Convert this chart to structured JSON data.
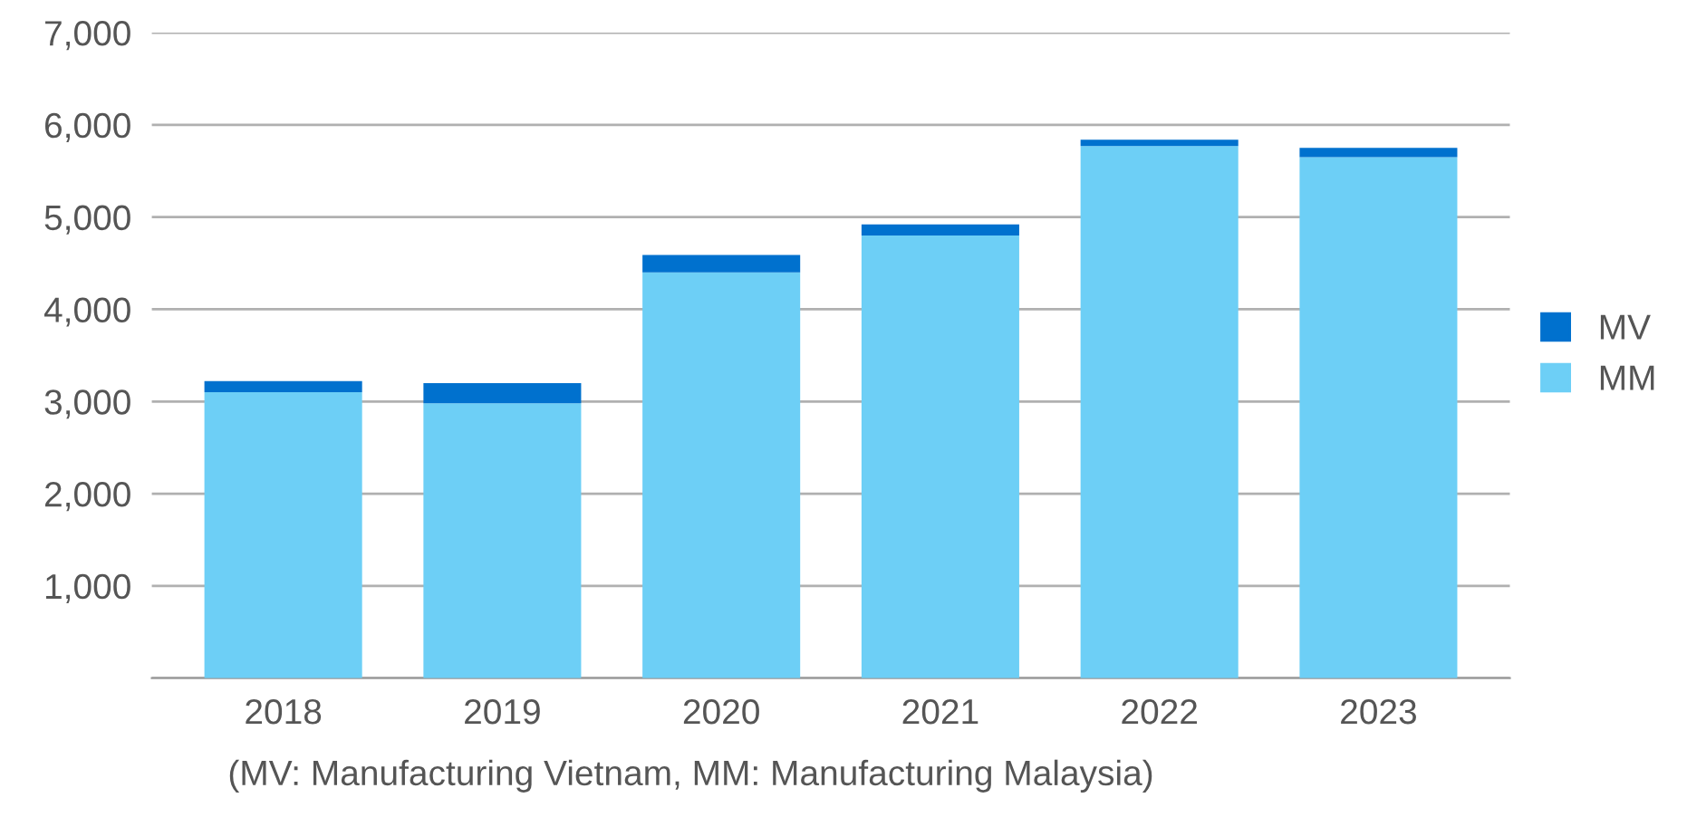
{
  "chart_data": {
    "type": "bar",
    "stacked": true,
    "categories": [
      "2018",
      "2019",
      "2020",
      "2021",
      "2022",
      "2023"
    ],
    "series": [
      {
        "name": "MM",
        "color": "#6dcff6",
        "values": [
          3100,
          2980,
          4400,
          4800,
          5770,
          5650
        ]
      },
      {
        "name": "MV",
        "color": "#0071ce",
        "values": [
          120,
          220,
          190,
          120,
          70,
          100
        ]
      }
    ],
    "ylim": [
      0,
      7000
    ],
    "yticks": [
      {
        "value": 0,
        "label": null
      },
      {
        "value": 1000,
        "label": "1,000"
      },
      {
        "value": 2000,
        "label": "2,000"
      },
      {
        "value": 3000,
        "label": "3,000"
      },
      {
        "value": 4000,
        "label": "4,000"
      },
      {
        "value": 5000,
        "label": "5,000"
      },
      {
        "value": 6000,
        "label": "6,000"
      },
      {
        "value": 7000,
        "label": "7,000"
      }
    ],
    "grid": "y",
    "legend": "right",
    "annotations": [
      "(MV: Manufacturing Vietnam, MM: Manufacturing Malaysia)"
    ]
  }
}
